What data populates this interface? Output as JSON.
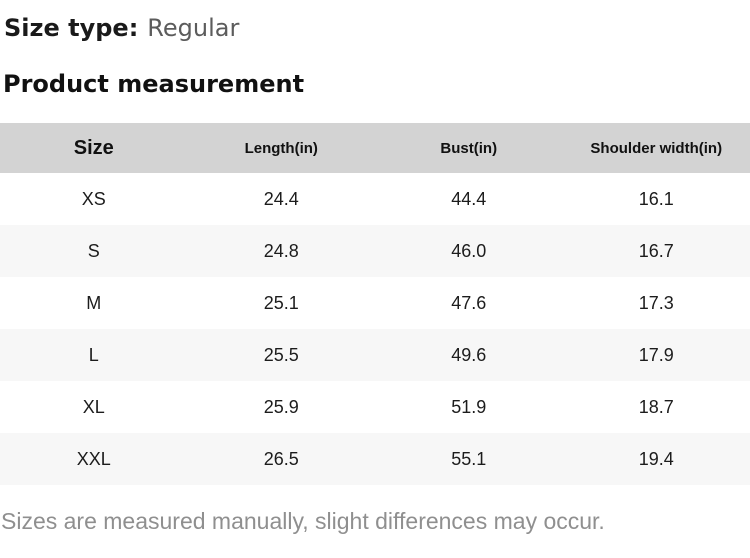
{
  "page": {
    "size_type_label": "Size type:",
    "size_type_value": "Regular",
    "section_title": "Product measurement",
    "footnote": "Sizes are measured manually, slight differences may occur."
  },
  "table": {
    "columns": [
      "Size",
      "Length(in)",
      "Bust(in)",
      "Shoulder width(in)"
    ],
    "rows": [
      [
        "XS",
        "24.4",
        "44.4",
        "16.1"
      ],
      [
        "S",
        "24.8",
        "46.0",
        "16.7"
      ],
      [
        "M",
        "25.1",
        "47.6",
        "17.3"
      ],
      [
        "L",
        "25.5",
        "49.6",
        "17.9"
      ],
      [
        "XL",
        "25.9",
        "51.9",
        "18.7"
      ],
      [
        "XXL",
        "26.5",
        "55.1",
        "19.4"
      ]
    ]
  },
  "colors": {
    "header_bg": "#d3d3d3",
    "row_alt_bg": "#f7f7f7",
    "heading_text": "#1a1a1a",
    "size_type_value_text": "#5c5c5c",
    "cell_text": "#1c1c1c",
    "footnote_text": "#8f8f8f"
  }
}
